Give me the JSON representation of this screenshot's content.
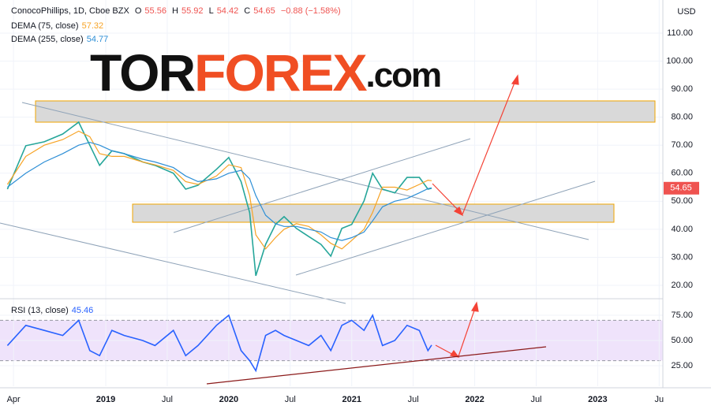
{
  "header": {
    "symbol": "ConocoPhillips, 1D, Cboe BZX",
    "open_label": "O",
    "open": 55.56,
    "high_label": "H",
    "high": 55.92,
    "low_label": "L",
    "low": 54.42,
    "close_label": "C",
    "close": 54.65,
    "change": "−0.88 (−1.58%)",
    "dema75_name": "DEMA (75, close)",
    "dema75_value": 57.32,
    "dema255_name": "DEMA (255, close)",
    "dema255_value": 54.77,
    "currency": "USD"
  },
  "logo": {
    "part1": "TOR",
    "part2": "FOREX",
    "part3": ".com"
  },
  "chart_data": [
    {
      "type": "line",
      "name": "price",
      "x": [
        2018.2,
        2018.35,
        2018.5,
        2018.65,
        2018.78,
        2018.87,
        2018.95,
        2019.05,
        2019.15,
        2019.3,
        2019.4,
        2019.55,
        2019.65,
        2019.75,
        2019.9,
        2020.0,
        2020.1,
        2020.17,
        2020.22,
        2020.3,
        2020.38,
        2020.45,
        2020.55,
        2020.65,
        2020.75,
        2020.83,
        2020.92,
        2021.0,
        2021.1,
        2021.17,
        2021.25,
        2021.35,
        2021.45,
        2021.55,
        2021.62,
        2021.65
      ],
      "series": [
        {
          "name": "ConocoPhillips",
          "color": "#26a69a",
          "values": [
            54.3,
            69.8,
            71.2,
            74,
            78.2,
            70,
            62.8,
            68,
            67,
            64,
            62.8,
            60,
            54.3,
            55.7,
            61.4,
            65.6,
            57,
            45.9,
            23.4,
            34.6,
            41.7,
            44.5,
            40.3,
            37.4,
            34.6,
            30.4,
            40.3,
            41.7,
            50.1,
            60,
            54.3,
            53,
            58.5,
            58.5,
            54.3,
            54.65
          ]
        },
        {
          "name": "DEMA (75, close)",
          "color": "#f7a325",
          "values": [
            56,
            66,
            70,
            72,
            75,
            73,
            67,
            66,
            66,
            64,
            63,
            61,
            57,
            56,
            59,
            63,
            62,
            52,
            38,
            33,
            37,
            40,
            42,
            41,
            38,
            35,
            33,
            36,
            40,
            46,
            55,
            55,
            54,
            56,
            57.5,
            57.32
          ]
        },
        {
          "name": "DEMA (255, close)",
          "color": "#2e8fd6",
          "values": [
            55,
            60,
            64,
            67,
            70,
            71,
            70,
            68,
            67,
            65,
            64,
            62,
            59,
            57,
            58,
            60,
            61,
            58,
            52,
            45,
            42,
            41,
            41,
            40,
            39,
            37,
            36,
            37,
            39,
            43,
            48,
            50,
            51,
            53,
            54.5,
            54.77
          ]
        }
      ],
      "last_value": 54.65,
      "xlim": [
        2018.14,
        2023.53
      ],
      "ylim": [
        15.5,
        121.8
      ],
      "yticks": [
        {
          "value": 20,
          "label": "20.00"
        },
        {
          "value": 30,
          "label": "30.00"
        },
        {
          "value": 40,
          "label": "40.00"
        },
        {
          "value": 50,
          "label": "50.00"
        },
        {
          "value": 60,
          "label": "60.00"
        },
        {
          "value": 70,
          "label": "70.00"
        },
        {
          "value": 80,
          "label": "80.00"
        },
        {
          "value": 90,
          "label": "90.00"
        },
        {
          "value": 100,
          "label": "100.00"
        },
        {
          "value": 110,
          "label": "110.00"
        }
      ],
      "grid": true
    },
    {
      "type": "line",
      "name": "rsi",
      "title": "RSI (13, close)",
      "current": 45.46,
      "x": [
        2018.2,
        2018.35,
        2018.5,
        2018.65,
        2018.78,
        2018.87,
        2018.95,
        2019.05,
        2019.15,
        2019.3,
        2019.4,
        2019.55,
        2019.65,
        2019.75,
        2019.9,
        2020.0,
        2020.1,
        2020.17,
        2020.22,
        2020.3,
        2020.38,
        2020.45,
        2020.55,
        2020.65,
        2020.75,
        2020.83,
        2020.92,
        2021.0,
        2021.1,
        2021.17,
        2021.25,
        2021.35,
        2021.45,
        2021.55,
        2021.62,
        2021.65
      ],
      "series": [
        {
          "name": "RSI",
          "color": "#2962ff",
          "values": [
            45,
            65,
            60,
            55,
            70,
            40,
            35,
            60,
            55,
            50,
            45,
            60,
            35,
            45,
            65,
            75,
            40,
            30,
            20,
            55,
            60,
            55,
            50,
            45,
            55,
            40,
            65,
            70,
            60,
            75,
            45,
            50,
            65,
            60,
            40,
            45.46
          ]
        }
      ],
      "band": [
        30,
        70
      ],
      "xlim": [
        2018.14,
        2023.53
      ],
      "ylim": [
        4.7,
        90.6
      ],
      "yticks": [
        {
          "value": 25,
          "label": "25.00"
        },
        {
          "value": 50,
          "label": "50.00"
        },
        {
          "value": 75,
          "label": "75.00"
        }
      ],
      "xticks": [
        {
          "value": 2018.25,
          "label": "Apr"
        },
        {
          "value": 2019,
          "label": "2019"
        },
        {
          "value": 2019.5,
          "label": "Jul"
        },
        {
          "value": 2020,
          "label": "2020"
        },
        {
          "value": 2020.5,
          "label": "Jul"
        },
        {
          "value": 2021,
          "label": "2021"
        },
        {
          "value": 2021.5,
          "label": "Jul"
        },
        {
          "value": 2022,
          "label": "2022"
        },
        {
          "value": 2022.5,
          "label": "Jul"
        },
        {
          "value": 2023,
          "label": "2023"
        },
        {
          "value": 2023.5,
          "label": "Ju"
        }
      ],
      "grid": true
    }
  ]
}
